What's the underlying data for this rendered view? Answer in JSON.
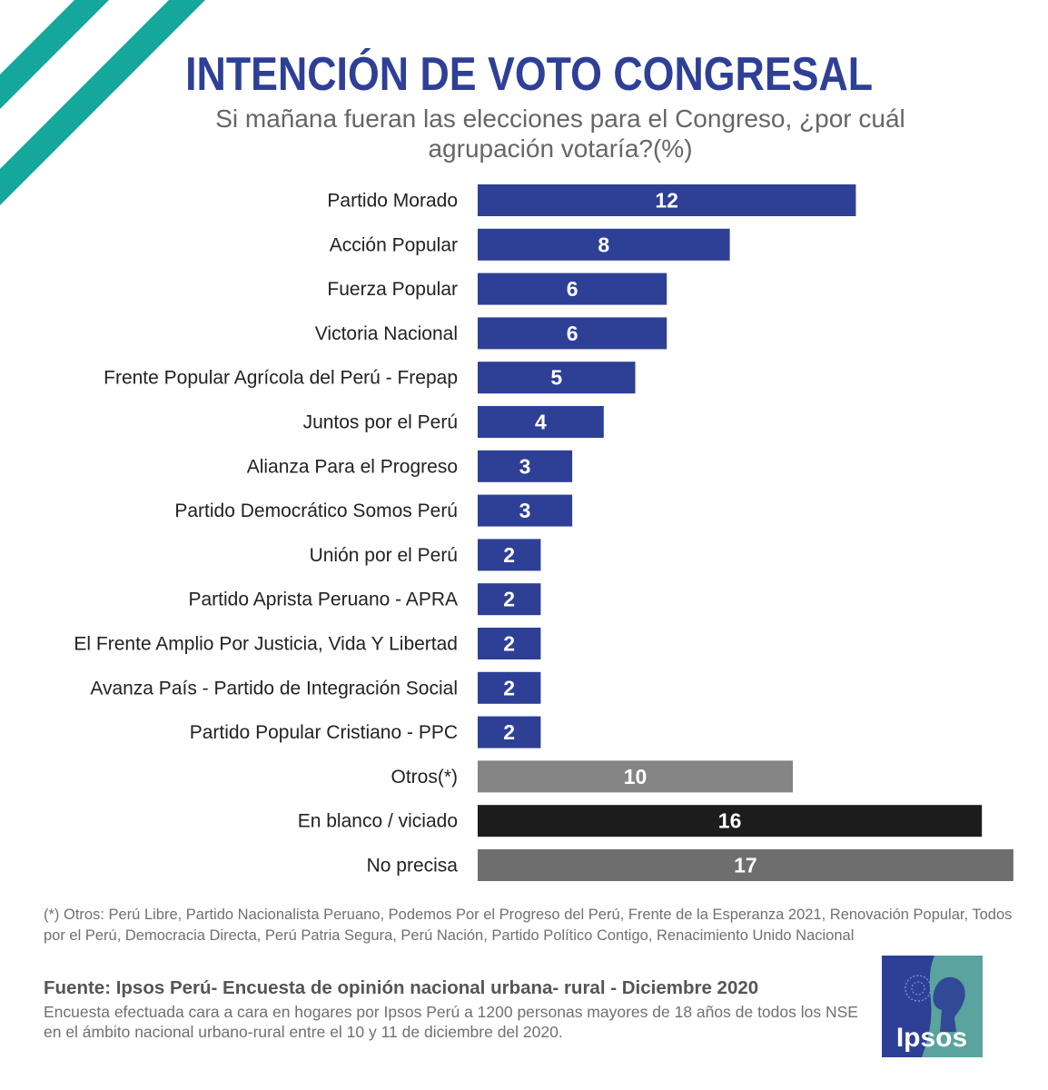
{
  "header": {
    "title": "INTENCIÓN DE VOTO CONGRESAL",
    "subtitle": "Si mañana fueran las elecciones para el Congreso, ¿por cuál agrupación votaría?(%)"
  },
  "chart_data": {
    "type": "bar",
    "orientation": "horizontal",
    "title": "INTENCIÓN DE VOTO CONGRESAL",
    "subtitle": "Si mañana fueran las elecciones para el Congreso, ¿por cuál agrupación votaría?(%)",
    "xlabel": "",
    "ylabel": "",
    "xlim": [
      0,
      17
    ],
    "grid": false,
    "data_labels": true,
    "categories": [
      "Partido Morado",
      "Acción Popular",
      "Fuerza Popular",
      "Victoria Nacional",
      "Frente Popular Agrícola del Perú - Frepap",
      "Juntos por el Perú",
      "Alianza Para el Progreso",
      "Partido Democrático Somos Perú",
      "Unión por el Perú",
      "Partido Aprista Peruano - APRA",
      "El Frente Amplio Por Justicia, Vida Y Libertad",
      "Avanza País - Partido de Integración Social",
      "Partido Popular Cristiano - PPC",
      "Otros(*)",
      "En blanco / viciado",
      "No precisa"
    ],
    "values": [
      12,
      8,
      6,
      6,
      5,
      4,
      3,
      3,
      2,
      2,
      2,
      2,
      2,
      10,
      16,
      17
    ],
    "colors": [
      "#2e3f96",
      "#2e3f96",
      "#2e3f96",
      "#2e3f96",
      "#2e3f96",
      "#2e3f96",
      "#2e3f96",
      "#2e3f96",
      "#2e3f96",
      "#2e3f96",
      "#2e3f96",
      "#2e3f96",
      "#2e3f96",
      "#858585",
      "#1c1c1c",
      "#6e6e6e"
    ]
  },
  "footnote": "(*) Otros: Perú Libre, Partido Nacionalista Peruano, Podemos Por el Progreso del Perú, Frente de la Esperanza 2021, Renovación Popular, Todos por el Perú, Democracia Directa, Perú Patria Segura, Perú Nación, Partido Político Contigo, Renacimiento Unido Nacional",
  "source": {
    "title": "Fuente: Ipsos Perú- Encuesta de opinión nacional urbana- rural - Diciembre 2020",
    "text": "Encuesta efectuada cara a cara en hogares por Ipsos Perú a 1200 personas mayores de 18 años de todos los NSE en el ámbito nacional urbano-rural entre el 10 y 11 de diciembre del 2020."
  },
  "logo": {
    "text": "Ipsos",
    "colors": {
      "blue": "#2e3f96",
      "teal": "#5aa39f"
    }
  },
  "decoration": {
    "stripe_color": "#14a79c"
  }
}
